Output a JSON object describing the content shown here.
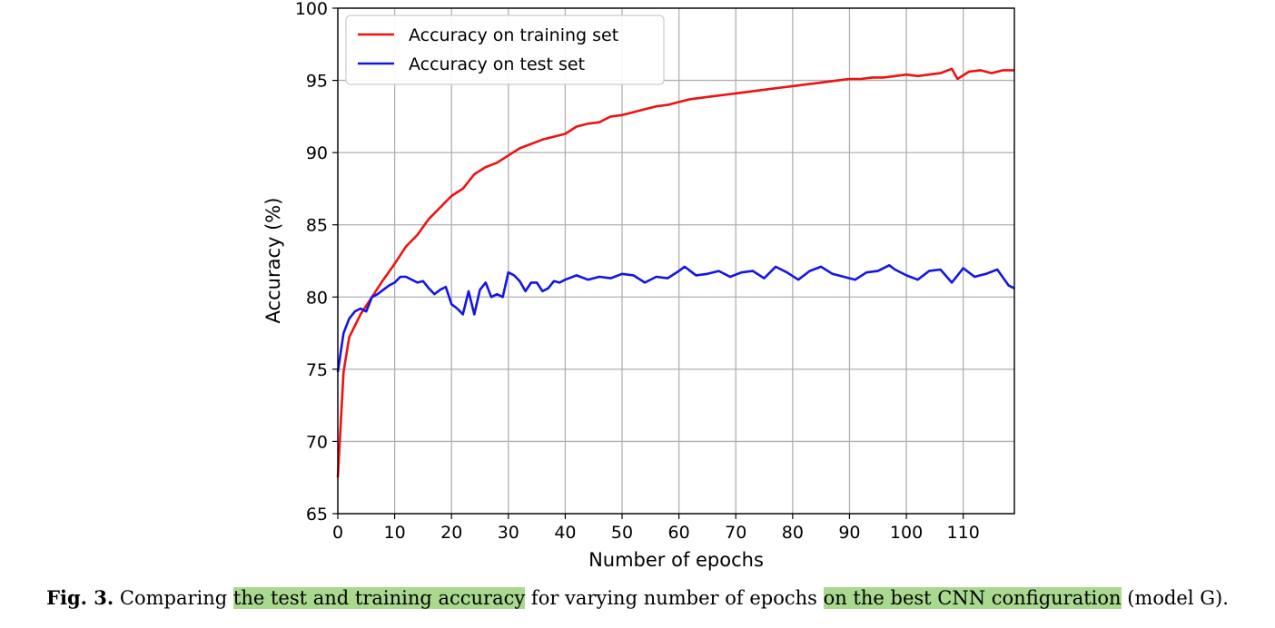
{
  "chart_data": {
    "type": "line",
    "xlabel": "Number of epochs",
    "ylabel": "Accuracy (%)",
    "xlim": [
      0,
      119
    ],
    "ylim": [
      65,
      100
    ],
    "xticks": [
      0,
      10,
      20,
      30,
      40,
      50,
      60,
      70,
      80,
      90,
      100,
      110
    ],
    "yticks": [
      65,
      70,
      75,
      80,
      85,
      90,
      95,
      100
    ],
    "grid": true,
    "legend_position": "upper-left",
    "series": [
      {
        "name": "Accuracy on training set",
        "color": "#ee1111",
        "x": [
          0,
          1,
          2,
          4,
          6,
          8,
          10,
          12,
          14,
          16,
          18,
          20,
          22,
          24,
          26,
          28,
          30,
          32,
          34,
          36,
          38,
          40,
          42,
          44,
          46,
          48,
          50,
          52,
          54,
          56,
          58,
          60,
          62,
          64,
          66,
          68,
          70,
          72,
          74,
          76,
          78,
          80,
          82,
          84,
          86,
          88,
          90,
          92,
          94,
          96,
          98,
          100,
          102,
          104,
          106,
          108,
          109,
          111,
          113,
          115,
          117,
          119
        ],
        "values": [
          67.5,
          74.8,
          77.2,
          78.8,
          80.0,
          81.2,
          82.3,
          83.5,
          84.3,
          85.4,
          86.2,
          87.0,
          87.5,
          88.5,
          89.0,
          89.3,
          89.8,
          90.3,
          90.6,
          90.9,
          91.1,
          91.3,
          91.8,
          92.0,
          92.1,
          92.5,
          92.6,
          92.8,
          93.0,
          93.2,
          93.3,
          93.5,
          93.7,
          93.8,
          93.9,
          94.0,
          94.1,
          94.2,
          94.3,
          94.4,
          94.5,
          94.6,
          94.7,
          94.8,
          94.9,
          95.0,
          95.1,
          95.1,
          95.2,
          95.2,
          95.3,
          95.4,
          95.3,
          95.4,
          95.5,
          95.8,
          95.1,
          95.6,
          95.7,
          95.5,
          95.7,
          95.7
        ]
      },
      {
        "name": "Accuracy on test set",
        "color": "#1414e6",
        "x": [
          0,
          1,
          2,
          3,
          4,
          5,
          6,
          7,
          8,
          9,
          10,
          11,
          12,
          13,
          14,
          15,
          16,
          17,
          18,
          19,
          20,
          21,
          22,
          23,
          24,
          25,
          26,
          27,
          28,
          29,
          30,
          31,
          32,
          33,
          34,
          35,
          36,
          37,
          38,
          39,
          40,
          42,
          44,
          46,
          48,
          50,
          52,
          54,
          56,
          58,
          60,
          61,
          63,
          65,
          67,
          69,
          71,
          73,
          75,
          77,
          79,
          81,
          83,
          85,
          87,
          89,
          91,
          93,
          95,
          97,
          98,
          100,
          102,
          104,
          106,
          108,
          110,
          112,
          114,
          116,
          118,
          119
        ],
        "values": [
          74.8,
          77.5,
          78.5,
          79.0,
          79.2,
          79.0,
          80.0,
          80.2,
          80.5,
          80.8,
          81.0,
          81.4,
          81.4,
          81.2,
          81.0,
          81.1,
          80.6,
          80.2,
          80.5,
          80.7,
          79.5,
          79.2,
          78.8,
          80.4,
          78.8,
          80.5,
          81.0,
          80.0,
          80.2,
          80.0,
          81.7,
          81.5,
          81.1,
          80.4,
          81.0,
          81.0,
          80.4,
          80.6,
          81.1,
          81.0,
          81.2,
          81.5,
          81.2,
          81.4,
          81.3,
          81.6,
          81.5,
          81.0,
          81.4,
          81.3,
          81.8,
          82.1,
          81.5,
          81.6,
          81.8,
          81.4,
          81.7,
          81.8,
          81.3,
          82.1,
          81.7,
          81.2,
          81.8,
          82.1,
          81.6,
          81.4,
          81.2,
          81.7,
          81.8,
          82.2,
          81.9,
          81.5,
          81.2,
          81.8,
          81.9,
          81.0,
          82.0,
          81.4,
          81.6,
          81.9,
          80.8,
          80.6
        ]
      }
    ]
  },
  "caption": {
    "label": "Fig. 3.",
    "part1": " Comparing ",
    "hl1": "the test and training accuracy",
    "part2": " for varying number of epochs ",
    "hl2": "on the best CNN configuration",
    "part3": " (model G)."
  }
}
